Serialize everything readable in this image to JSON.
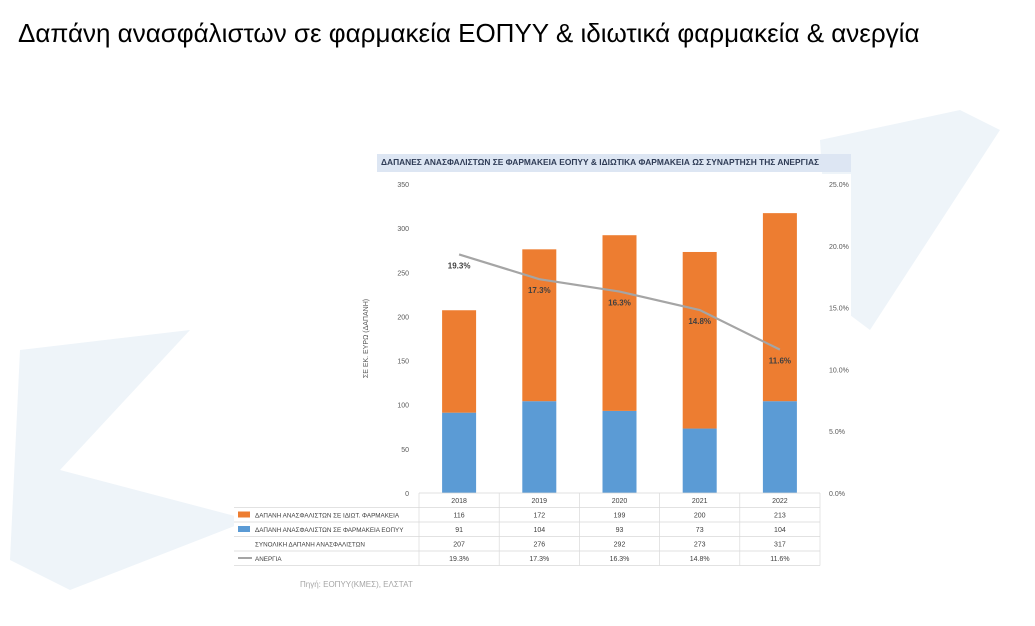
{
  "slide": {
    "title": "Δαπάνη ανασφάλιστων σε φαρμακεία ΕΟΠΥΥ & ιδιωτικά φαρμακεία & ανεργία",
    "source": "Πηγή: ΕΟΠΥΥ(ΚΜΕΣ), ΕΛΣΤΑΤ"
  },
  "colors": {
    "private_pharmacy": "#ed7d31",
    "eopyy_pharmacy": "#5b9bd5",
    "unemployment": "#a5a5a5",
    "title_bar": "#dde6f3",
    "watermark": "#eef4f9"
  },
  "chart_data": {
    "type": "bar",
    "stacked": true,
    "title": "ΔΑΠΑΝΕΣ ΑΝΑΣΦΑΛΙΣΤΩΝ ΣΕ ΦΑΡΜΑΚΕΙΑ ΕΟΠΥΥ & ΙΔΙΩΤΙΚΑ ΦΑΡΜΑΚΕΙΑ ΩΣ ΣΥΝΑΡΤΗΣΗ ΤΗΣ ΑΝΕΡΓΙΑΣ",
    "ylabel": "ΣΕ ΕΚ. ΕΥΡΩ (ΔΑΠΑΝΗ)",
    "categories": [
      "2018",
      "2019",
      "2020",
      "2021",
      "2022"
    ],
    "ylim": [
      0,
      350
    ],
    "yticks": [
      "0",
      "50",
      "100",
      "150",
      "200",
      "250",
      "300",
      "350"
    ],
    "y2lim": [
      0,
      25
    ],
    "y2ticks": [
      "0.0%",
      "5.0%",
      "10.0%",
      "15.0%",
      "20.0%",
      "25.0%"
    ],
    "series": [
      {
        "name": "ΔΑΠΑΝΗ ΑΝΑΣΦΑΛΙΣΤΩΝ ΣΕ ΙΔΙΩΤ. ΦΑΡΜΑΚΕΙΑ",
        "values": [
          116,
          172,
          199,
          200,
          213
        ],
        "labels": [
          "116",
          "172",
          "199",
          "200",
          "213"
        ]
      },
      {
        "name": "ΔΑΠΑΝΗ ΑΝΑΣΦΑΛΙΣΤΩΝ ΣΕ ΦΑΡΜΑΚΕΙΑ ΕΟΠΥΥ",
        "values": [
          91,
          104,
          93,
          73,
          104
        ],
        "labels": [
          "91",
          "104",
          "93",
          "73",
          "104"
        ]
      },
      {
        "name": "ΣΥΝΟΛΙΚΗ ΔΑΠΑΝΗ ΑΝΑΣΦΑΛΙΣΤΩΝ",
        "values": [
          207,
          276,
          292,
          273,
          317
        ],
        "labels": [
          "207",
          "276",
          "292",
          "273",
          "317"
        ]
      },
      {
        "name": "ΑΝΕΡΓΙΑ",
        "values": [
          19.3,
          17.3,
          16.3,
          14.8,
          11.6
        ],
        "labels": [
          "19.3%",
          "17.3%",
          "16.3%",
          "14.8%",
          "11.6%"
        ]
      }
    ],
    "legend": "table-bottom",
    "grid": false
  }
}
